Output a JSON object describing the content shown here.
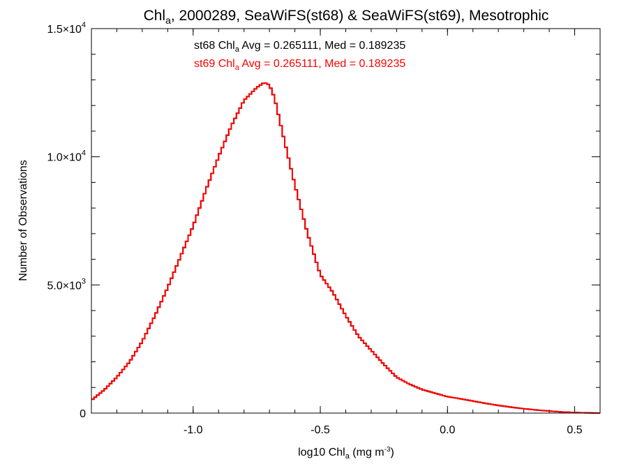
{
  "chart_data": {
    "type": "histogram",
    "title": {
      "prefix": "Chl",
      "sub": "a",
      "suffix": ", 2000289, SeaWiFS(st68) & SeaWiFS(st69), Mesotrophic"
    },
    "xlabel": {
      "prefix": "log10 Chl",
      "sub": "a",
      "unit_open": " (mg m",
      "unit_sup": "-3",
      "unit_close": ")"
    },
    "ylabel": "Number of Observations",
    "xlim": [
      -1.4,
      0.6
    ],
    "ylim": [
      0,
      15000
    ],
    "x_ticks": [
      {
        "value": -1.0,
        "label": "-1.0"
      },
      {
        "value": -0.5,
        "label": "-0.5"
      },
      {
        "value": 0.0,
        "label": "0.0"
      },
      {
        "value": 0.5,
        "label": "0.5"
      }
    ],
    "y_ticks": [
      {
        "value": 0,
        "mantissa": "0",
        "exponent": ""
      },
      {
        "value": 5000,
        "mantissa": "5.0×10",
        "exponent": "3"
      },
      {
        "value": 10000,
        "mantissa": "1.0×10",
        "exponent": "4"
      },
      {
        "value": 15000,
        "mantissa": "1.5×10",
        "exponent": "4"
      }
    ],
    "annotations": [
      {
        "prefix": "st68 Chl",
        "sub": "a",
        "suffix": " Avg = 0.265111, Med = 0.189235",
        "color": "#000000"
      },
      {
        "prefix": "st69 Chl",
        "sub": "a",
        "suffix": " Avg = 0.265111, Med = 0.189235",
        "color": "#ff0000"
      }
    ],
    "series": [
      {
        "name": "st68",
        "color": "#000000",
        "x": [
          -1.4,
          -1.35,
          -1.3,
          -1.25,
          -1.2,
          -1.15,
          -1.1,
          -1.05,
          -1.0,
          -0.95,
          -0.9,
          -0.85,
          -0.8,
          -0.75,
          -0.72,
          -0.7,
          -0.68,
          -0.65,
          -0.6,
          -0.55,
          -0.5,
          -0.45,
          -0.4,
          -0.35,
          -0.3,
          -0.25,
          -0.2,
          -0.15,
          -0.1,
          -0.05,
          0.0,
          0.05,
          0.1,
          0.15,
          0.2,
          0.25,
          0.3,
          0.35,
          0.4,
          0.45,
          0.5,
          0.55,
          0.6
        ],
        "y": [
          500,
          900,
          1400,
          2000,
          2800,
          3800,
          4900,
          6100,
          7300,
          8700,
          10000,
          11200,
          12200,
          12700,
          12900,
          12800,
          12300,
          11000,
          8900,
          7000,
          5400,
          4700,
          3800,
          3000,
          2450,
          1900,
          1400,
          1130,
          920,
          780,
          640,
          560,
          470,
          380,
          300,
          230,
          170,
          120,
          80,
          45,
          20,
          10,
          0
        ]
      },
      {
        "name": "st69",
        "color": "#ff0000",
        "x": [
          -1.4,
          -1.35,
          -1.3,
          -1.25,
          -1.2,
          -1.15,
          -1.1,
          -1.05,
          -1.0,
          -0.95,
          -0.9,
          -0.85,
          -0.8,
          -0.75,
          -0.72,
          -0.7,
          -0.68,
          -0.65,
          -0.6,
          -0.55,
          -0.5,
          -0.45,
          -0.4,
          -0.35,
          -0.3,
          -0.25,
          -0.2,
          -0.15,
          -0.1,
          -0.05,
          0.0,
          0.05,
          0.1,
          0.15,
          0.2,
          0.25,
          0.3,
          0.35,
          0.4,
          0.45,
          0.5,
          0.55,
          0.6
        ],
        "y": [
          500,
          900,
          1400,
          2000,
          2800,
          3800,
          4900,
          6100,
          7300,
          8700,
          10000,
          11200,
          12200,
          12700,
          12900,
          12800,
          12300,
          11000,
          8900,
          7000,
          5400,
          4700,
          3800,
          3000,
          2450,
          1900,
          1400,
          1130,
          920,
          780,
          640,
          560,
          470,
          380,
          300,
          230,
          170,
          120,
          80,
          45,
          20,
          10,
          0
        ]
      }
    ]
  }
}
